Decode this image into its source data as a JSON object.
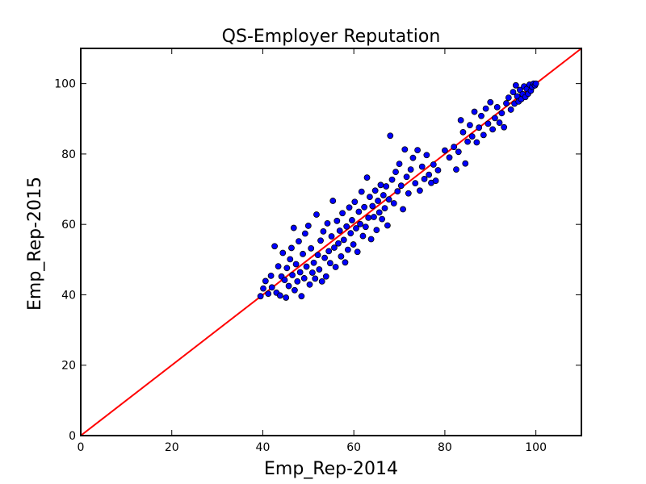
{
  "chart_data": {
    "type": "scatter",
    "title": "QS-Employer Reputation",
    "xlabel": "Emp_Rep-2014",
    "ylabel": "Emp_Rep-2015",
    "xlim": [
      0,
      110
    ],
    "ylim": [
      0,
      110
    ],
    "xticks": [
      "0",
      "20",
      "40",
      "60",
      "80",
      "100"
    ],
    "yticks": [
      "0",
      "20",
      "40",
      "60",
      "80",
      "100"
    ],
    "grid": false,
    "point_color": "#0000ff",
    "point_edge_color": "#000000",
    "reference_line": {
      "from": [
        0,
        0
      ],
      "to": [
        110,
        110
      ],
      "color": "#ff0000"
    },
    "series": [
      {
        "points": [
          [
            39.5,
            39.6
          ],
          [
            40.1,
            41.8
          ],
          [
            40.6,
            43.9
          ],
          [
            41.2,
            40.3
          ],
          [
            41.8,
            45.4
          ],
          [
            42.0,
            42.1
          ],
          [
            42.6,
            53.8
          ],
          [
            43.0,
            40.6
          ],
          [
            43.4,
            48.1
          ],
          [
            43.8,
            39.8
          ],
          [
            44.1,
            45.2
          ],
          [
            44.4,
            51.9
          ],
          [
            44.8,
            44.2
          ],
          [
            45.1,
            39.2
          ],
          [
            45.3,
            47.6
          ],
          [
            45.7,
            42.5
          ],
          [
            46.0,
            50.1
          ],
          [
            46.3,
            53.3
          ],
          [
            46.5,
            45.6
          ],
          [
            46.8,
            59.0
          ],
          [
            47.0,
            41.3
          ],
          [
            47.3,
            48.7
          ],
          [
            47.6,
            43.8
          ],
          [
            47.9,
            55.2
          ],
          [
            48.2,
            46.4
          ],
          [
            48.5,
            39.6
          ],
          [
            48.8,
            51.6
          ],
          [
            49.1,
            44.7
          ],
          [
            49.3,
            57.4
          ],
          [
            49.6,
            48.0
          ],
          [
            50.0,
            59.6
          ],
          [
            50.3,
            42.9
          ],
          [
            50.6,
            53.2
          ],
          [
            50.9,
            46.3
          ],
          [
            51.2,
            49.1
          ],
          [
            51.5,
            44.6
          ],
          [
            51.8,
            62.8
          ],
          [
            52.1,
            51.3
          ],
          [
            52.4,
            47.2
          ],
          [
            52.7,
            55.4
          ],
          [
            53.0,
            43.8
          ],
          [
            53.3,
            58.0
          ],
          [
            53.6,
            50.5
          ],
          [
            53.9,
            45.2
          ],
          [
            54.2,
            60.3
          ],
          [
            54.5,
            52.4
          ],
          [
            54.8,
            49.0
          ],
          [
            55.1,
            56.6
          ],
          [
            55.4,
            66.7
          ],
          [
            55.7,
            53.4
          ],
          [
            56.0,
            47.9
          ],
          [
            56.3,
            61.0
          ],
          [
            56.6,
            54.6
          ],
          [
            56.9,
            58.2
          ],
          [
            57.2,
            50.9
          ],
          [
            57.5,
            63.2
          ],
          [
            57.8,
            55.6
          ],
          [
            58.1,
            49.2
          ],
          [
            58.4,
            59.4
          ],
          [
            58.7,
            52.8
          ],
          [
            59.0,
            64.8
          ],
          [
            59.3,
            57.5
          ],
          [
            59.6,
            61.2
          ],
          [
            59.9,
            54.3
          ],
          [
            60.2,
            66.4
          ],
          [
            60.5,
            58.9
          ],
          [
            60.8,
            52.2
          ],
          [
            61.1,
            63.6
          ],
          [
            61.4,
            60.1
          ],
          [
            61.7,
            69.3
          ],
          [
            62.0,
            56.7
          ],
          [
            62.3,
            64.9
          ],
          [
            62.6,
            59.3
          ],
          [
            62.9,
            73.3
          ],
          [
            63.2,
            61.9
          ],
          [
            63.5,
            67.8
          ],
          [
            63.8,
            55.8
          ],
          [
            64.1,
            65.2
          ],
          [
            64.4,
            62.1
          ],
          [
            64.7,
            69.6
          ],
          [
            65.0,
            58.4
          ],
          [
            65.3,
            66.7
          ],
          [
            65.6,
            63.4
          ],
          [
            65.9,
            71.2
          ],
          [
            66.2,
            61.5
          ],
          [
            66.5,
            68.3
          ],
          [
            66.8,
            64.6
          ],
          [
            67.1,
            70.8
          ],
          [
            67.4,
            59.7
          ],
          [
            67.7,
            67.1
          ],
          [
            68.0,
            85.2
          ],
          [
            68.4,
            72.7
          ],
          [
            68.8,
            66.0
          ],
          [
            69.2,
            74.9
          ],
          [
            69.6,
            69.4
          ],
          [
            70.0,
            77.2
          ],
          [
            70.4,
            71.0
          ],
          [
            70.8,
            64.3
          ],
          [
            71.2,
            81.3
          ],
          [
            71.6,
            73.5
          ],
          [
            72.0,
            68.8
          ],
          [
            72.5,
            75.6
          ],
          [
            73.0,
            78.9
          ],
          [
            73.5,
            71.7
          ],
          [
            74.0,
            81.1
          ],
          [
            74.5,
            69.6
          ],
          [
            75.0,
            76.4
          ],
          [
            75.5,
            72.9
          ],
          [
            76.0,
            79.7
          ],
          [
            76.5,
            74.1
          ],
          [
            77.0,
            71.8
          ],
          [
            77.5,
            77.0
          ],
          [
            78.0,
            72.4
          ],
          [
            78.5,
            75.4
          ],
          [
            80.0,
            81.0
          ],
          [
            81.0,
            79.0
          ],
          [
            82.0,
            82.0
          ],
          [
            82.5,
            75.6
          ],
          [
            83.0,
            80.6
          ],
          [
            83.5,
            89.6
          ],
          [
            84.0,
            86.2
          ],
          [
            84.5,
            77.3
          ],
          [
            85.0,
            83.5
          ],
          [
            85.5,
            88.2
          ],
          [
            86.0,
            85.0
          ],
          [
            86.5,
            92.0
          ],
          [
            87.0,
            83.3
          ],
          [
            87.5,
            87.5
          ],
          [
            88.0,
            90.8
          ],
          [
            88.5,
            85.4
          ],
          [
            89.0,
            92.9
          ],
          [
            89.5,
            88.6
          ],
          [
            90.0,
            94.7
          ],
          [
            90.5,
            87.0
          ],
          [
            91.0,
            90.2
          ],
          [
            91.5,
            93.3
          ],
          [
            92.0,
            88.9
          ],
          [
            92.5,
            91.6
          ],
          [
            93.0,
            87.6
          ],
          [
            93.5,
            94.4
          ],
          [
            94.0,
            96.0
          ],
          [
            94.5,
            92.6
          ],
          [
            95.0,
            97.6
          ],
          [
            95.3,
            94.3
          ],
          [
            95.6,
            99.5
          ],
          [
            95.9,
            96.4
          ],
          [
            96.2,
            94.9
          ],
          [
            96.5,
            98.2
          ],
          [
            96.8,
            95.6
          ],
          [
            97.1,
            97.0
          ],
          [
            97.4,
            99.2
          ],
          [
            97.7,
            96.2
          ],
          [
            98.0,
            98.5
          ],
          [
            98.3,
            97.1
          ],
          [
            98.6,
            99.7
          ],
          [
            98.9,
            98.0
          ],
          [
            99.2,
            99.1
          ],
          [
            99.5,
            100.0
          ],
          [
            99.8,
            99.5
          ],
          [
            100.0,
            100.0
          ]
        ]
      }
    ]
  }
}
